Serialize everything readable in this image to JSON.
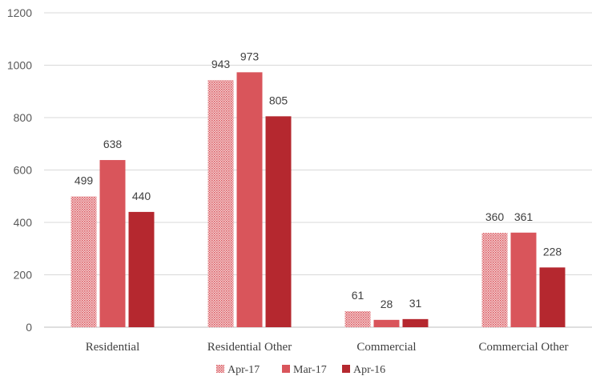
{
  "chart_data": {
    "type": "bar",
    "categories": [
      "Residential",
      "Residential Other",
      "Commercial",
      "Commercial Other"
    ],
    "series": [
      {
        "name": "Apr-17",
        "values": [
          499,
          943,
          61,
          360
        ],
        "color": "#E8A0A4",
        "pattern": "dotted"
      },
      {
        "name": "Mar-17",
        "values": [
          638,
          973,
          28,
          361
        ],
        "color": "#D9555B"
      },
      {
        "name": "Apr-16",
        "values": [
          440,
          805,
          31,
          228
        ],
        "color": "#B5282F"
      }
    ],
    "ylim": [
      0,
      1200
    ],
    "yticks": [
      "0",
      "200",
      "400",
      "600",
      "800",
      "1000",
      "1200"
    ],
    "grid": true,
    "legend": "bottom-center",
    "data_labels": true
  }
}
